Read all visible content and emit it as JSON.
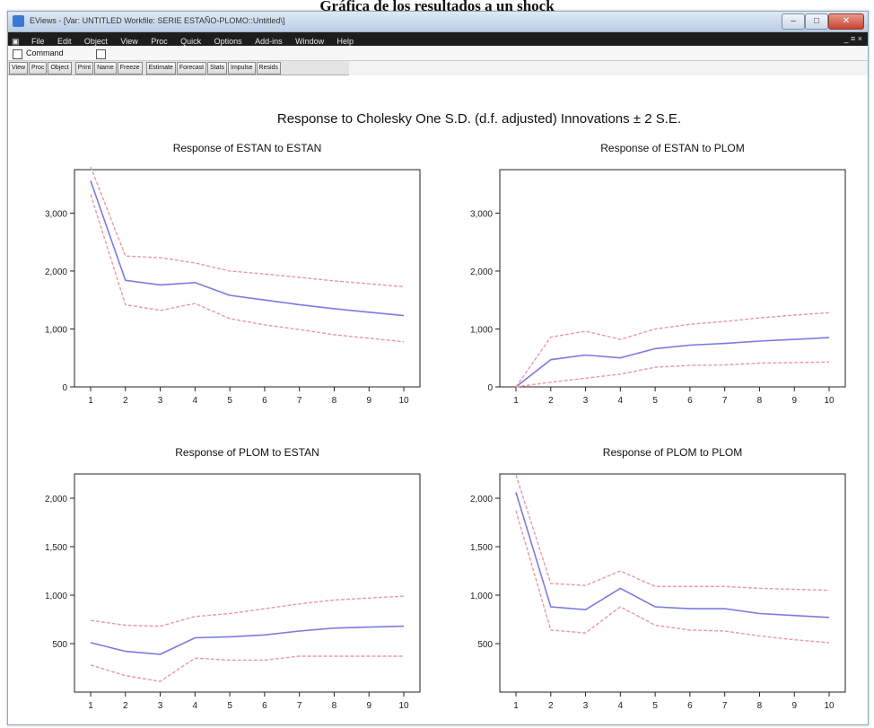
{
  "document": {
    "caption": "Gráfica de los resultados a un shock"
  },
  "window": {
    "title": "EViews - [Var: UNTITLED   Workfile: SERIE ESTAÑO-PLOMO::Untitled\\]",
    "controls": {
      "minimize": "–",
      "maximize": "□",
      "close": "✕"
    }
  },
  "menu": {
    "items": [
      "File",
      "Edit",
      "Object",
      "View",
      "Proc",
      "Quick",
      "Options",
      "Add-ins",
      "Window",
      "Help"
    ],
    "mdi_controls": "_ ≡ ×"
  },
  "command_bar": {
    "label": "Command"
  },
  "toolbar": {
    "buttons": [
      "View",
      "Proc",
      "Object",
      "Print",
      "Name",
      "Freeze",
      "Estimate",
      "Forecast",
      "Stats",
      "Impulse",
      "Resids"
    ]
  },
  "colors": {
    "response": "#7b7be0",
    "band": "#e89aa8",
    "frame": "#222222"
  },
  "graph": {
    "title": "Response to Cholesky One S.D. (d.f. adjusted) Innovations ± 2 S.E.",
    "x_ticks": [
      "1",
      "2",
      "3",
      "4",
      "5",
      "6",
      "7",
      "8",
      "9",
      "10"
    ]
  },
  "chart_data": [
    {
      "type": "line",
      "title": "Response of ESTAN to ESTAN",
      "x": [
        1,
        2,
        3,
        4,
        5,
        6,
        7,
        8,
        9,
        10
      ],
      "ylim": [
        0,
        3750
      ],
      "yticks": [
        {
          "value": 0,
          "label": "0"
        },
        {
          "value": 1000,
          "label": "1,000"
        },
        {
          "value": 2000,
          "label": "2,000"
        },
        {
          "value": 3000,
          "label": "3,000"
        }
      ],
      "series": [
        {
          "role": "response",
          "values": [
            3560,
            1840,
            1760,
            1800,
            1580,
            1500,
            1420,
            1350,
            1290,
            1230
          ]
        },
        {
          "role": "upper",
          "values": [
            3800,
            2260,
            2230,
            2140,
            2000,
            1950,
            1890,
            1830,
            1780,
            1730
          ]
        },
        {
          "role": "lower",
          "values": [
            3320,
            1420,
            1320,
            1440,
            1180,
            1070,
            990,
            900,
            840,
            780
          ]
        }
      ]
    },
    {
      "type": "line",
      "title": "Response of ESTAN to PLOM",
      "x": [
        1,
        2,
        3,
        4,
        5,
        6,
        7,
        8,
        9,
        10
      ],
      "ylim": [
        0,
        3750
      ],
      "yticks": [
        {
          "value": 0,
          "label": "0"
        },
        {
          "value": 1000,
          "label": "1,000"
        },
        {
          "value": 2000,
          "label": "2,000"
        },
        {
          "value": 3000,
          "label": "3,000"
        }
      ],
      "series": [
        {
          "role": "response",
          "values": [
            0,
            470,
            550,
            500,
            660,
            720,
            750,
            790,
            820,
            850
          ]
        },
        {
          "role": "upper",
          "values": [
            0,
            860,
            960,
            820,
            1000,
            1080,
            1130,
            1190,
            1240,
            1280
          ]
        },
        {
          "role": "lower",
          "values": [
            0,
            80,
            150,
            220,
            340,
            370,
            380,
            410,
            420,
            430
          ]
        }
      ]
    },
    {
      "type": "line",
      "title": "Response of PLOM to ESTAN",
      "x": [
        1,
        2,
        3,
        4,
        5,
        6,
        7,
        8,
        9,
        10
      ],
      "ylim": [
        0,
        2250
      ],
      "yticks": [
        {
          "value": 500,
          "label": "500"
        },
        {
          "value": 1000,
          "label": "1,000"
        },
        {
          "value": 1500,
          "label": "1,500"
        },
        {
          "value": 2000,
          "label": "2,000"
        }
      ],
      "series": [
        {
          "role": "response",
          "values": [
            510,
            420,
            390,
            560,
            570,
            590,
            630,
            660,
            670,
            680
          ]
        },
        {
          "role": "upper",
          "values": [
            740,
            690,
            680,
            780,
            810,
            860,
            910,
            950,
            970,
            990
          ]
        },
        {
          "role": "lower",
          "values": [
            280,
            170,
            110,
            350,
            330,
            330,
            370,
            370,
            370,
            370
          ]
        }
      ]
    },
    {
      "type": "line",
      "title": "Response of PLOM to PLOM",
      "x": [
        1,
        2,
        3,
        4,
        5,
        6,
        7,
        8,
        9,
        10
      ],
      "ylim": [
        0,
        2250
      ],
      "yticks": [
        {
          "value": 500,
          "label": "500"
        },
        {
          "value": 1000,
          "label": "1,000"
        },
        {
          "value": 1500,
          "label": "1,500"
        },
        {
          "value": 2000,
          "label": "2,000"
        }
      ],
      "series": [
        {
          "role": "response",
          "values": [
            2060,
            880,
            850,
            1070,
            880,
            860,
            860,
            810,
            790,
            770
          ]
        },
        {
          "role": "upper",
          "values": [
            2240,
            1120,
            1100,
            1250,
            1090,
            1090,
            1090,
            1070,
            1060,
            1050
          ]
        },
        {
          "role": "lower",
          "values": [
            1870,
            640,
            610,
            880,
            690,
            640,
            630,
            580,
            540,
            510
          ]
        }
      ]
    }
  ]
}
